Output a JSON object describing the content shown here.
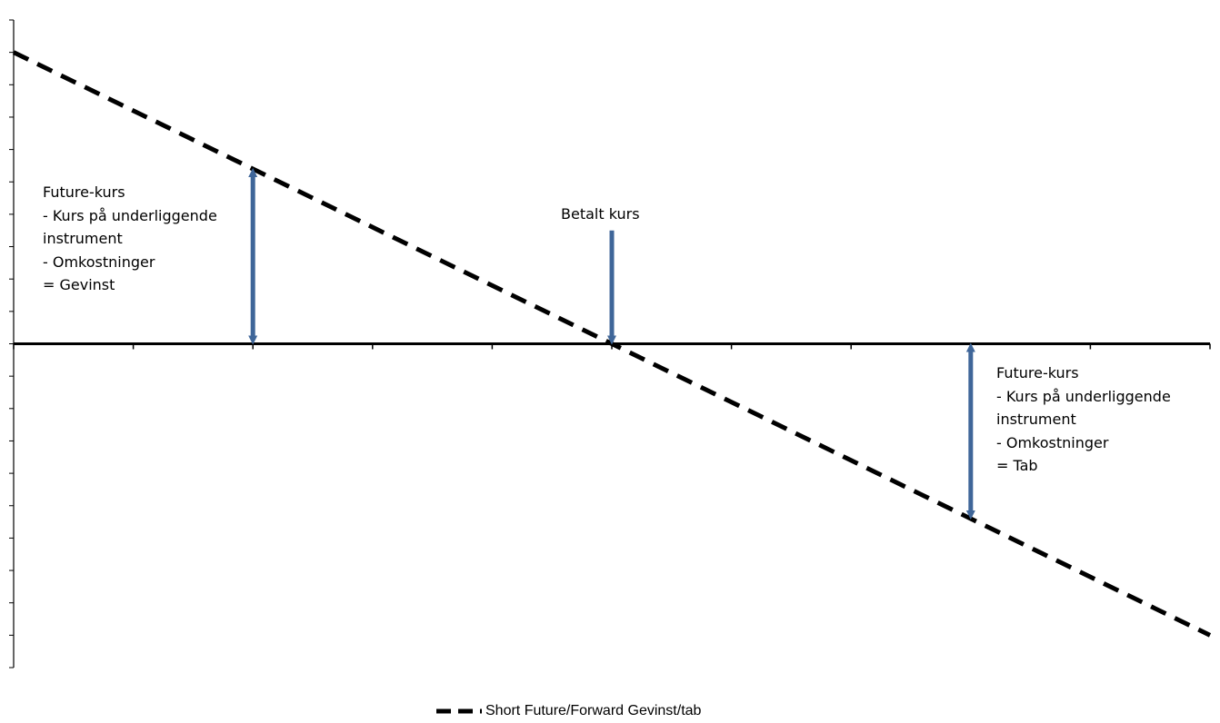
{
  "chart_data": {
    "type": "line",
    "title": "",
    "xlabel": "",
    "ylabel": "",
    "xlim": [
      0,
      10
    ],
    "ylim": [
      -10,
      10
    ],
    "x_ticks": [
      0,
      1,
      2,
      3,
      4,
      5,
      6,
      7,
      8,
      9,
      10
    ],
    "y_tick_step": 1,
    "grid": false,
    "legend_position": "bottom",
    "series": [
      {
        "name": "Short Future/Forward Gevinst/tab",
        "style": "dashed",
        "color": "#000000",
        "x": [
          0,
          10
        ],
        "y": [
          9,
          -9
        ]
      }
    ],
    "annotations": [
      {
        "id": "gain",
        "lines": [
          "Future-kurs",
          "- Kurs på underliggende",
          "instrument",
          "- Omkostninger",
          "= Gevinst"
        ],
        "arrow": {
          "x": 2,
          "y_from": 0,
          "y_to": 5.4,
          "direction": "both"
        }
      },
      {
        "id": "paid",
        "lines": [
          "Betalt kurs"
        ],
        "arrow": {
          "x": 5,
          "y_from": 3.5,
          "y_to": 0,
          "direction": "down"
        }
      },
      {
        "id": "loss",
        "lines": [
          "Future-kurs",
          "- Kurs på underliggende",
          "instrument",
          "- Omkostninger",
          "= Tab"
        ],
        "arrow": {
          "x": 8,
          "y_from": 0,
          "y_to": -5.4,
          "direction": "both"
        }
      }
    ],
    "colors": {
      "arrow": "#3f6699",
      "line": "#000000",
      "axis": "#000000"
    }
  }
}
